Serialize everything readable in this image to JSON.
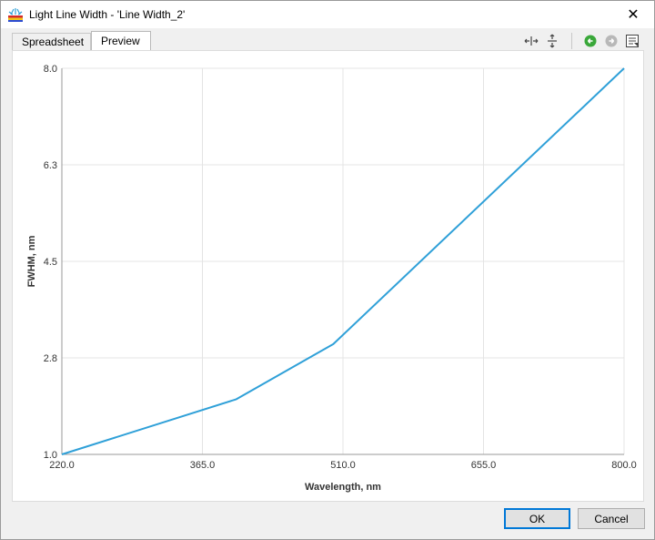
{
  "window": {
    "title": "Light Line Width - 'Line Width_2'",
    "close_glyph": "✕"
  },
  "tabs": [
    {
      "label": "Spreadsheet",
      "selected": false
    },
    {
      "label": "Preview",
      "selected": true
    }
  ],
  "toolbar": {
    "icons": [
      "fit-width-icon",
      "fit-height-icon",
      "back-icon",
      "forward-icon",
      "zoom-menu-icon"
    ]
  },
  "buttons": {
    "ok_label": "OK",
    "cancel_label": "Cancel"
  },
  "colors": {
    "series": "#2fa0d8",
    "grid": "#e4e4e4",
    "ok_border": "#0078d7"
  },
  "chart_data": {
    "type": "line",
    "xlabel": "Wavelength, nm",
    "ylabel": "FWHM, nm",
    "xlim": [
      220.0,
      800.0
    ],
    "ylim": [
      1.0,
      8.0
    ],
    "x_ticks": [
      "220.0",
      "365.0",
      "510.0",
      "655.0",
      "800.0"
    ],
    "y_ticks": [
      "1.0",
      "2.8",
      "4.5",
      "6.3",
      "8.0"
    ],
    "x_tick_values": [
      220,
      365,
      510,
      655,
      800
    ],
    "y_tick_values": [
      1.0,
      2.75,
      4.5,
      6.25,
      8.0
    ],
    "grid": true,
    "series": [
      {
        "x": [
          220,
          400,
          500,
          800
        ],
        "y": [
          1.0,
          2.0,
          3.0,
          8.0
        ]
      }
    ]
  }
}
